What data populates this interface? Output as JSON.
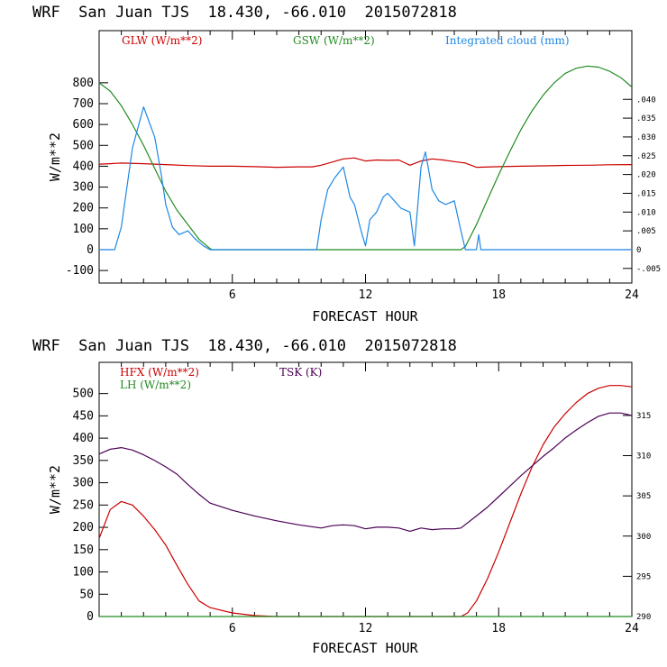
{
  "chart_data": [
    {
      "type": "line",
      "title": "WRF  San Juan TJS  18.430, -66.010  2015072818",
      "xlabel": "FORECAST HOUR",
      "ylabel": "W/m**2",
      "xlim": [
        0,
        24
      ],
      "ylim": [
        -160,
        1050
      ],
      "x_ticks": [
        "6",
        "12",
        "18",
        "24"
      ],
      "y_ticks": [
        "800",
        "700",
        "600",
        "500",
        "400",
        "300",
        "200",
        "100",
        "0",
        "-100"
      ],
      "y2lim": [
        -0.00889,
        0.0583
      ],
      "y2_ticks": [
        ".040",
        ".035",
        ".030",
        ".025",
        ".020",
        ".015",
        ".010",
        ".005",
        "0",
        "-.005"
      ],
      "legend_placement": "top",
      "series": [
        {
          "name": "GLW (W/m**2)",
          "color": "#cc0000",
          "axis": "left",
          "x": [
            0,
            0.5,
            1,
            2,
            3,
            4,
            5,
            6,
            7,
            8,
            9,
            9.6,
            10,
            10.5,
            11,
            11.5,
            12,
            12.5,
            13,
            13.5,
            14,
            14.5,
            15,
            15.5,
            16,
            16.5,
            17,
            18,
            19,
            20,
            21,
            22,
            23,
            24
          ],
          "y": [
            410,
            412,
            415,
            412,
            408,
            403,
            400,
            400,
            398,
            395,
            397,
            397,
            405,
            420,
            435,
            440,
            425,
            430,
            428,
            430,
            405,
            425,
            435,
            430,
            422,
            415,
            395,
            398,
            400,
            402,
            404,
            405,
            407,
            408
          ]
        },
        {
          "name": "GSW (W/m**2)",
          "color": "#228b22",
          "axis": "left",
          "x": [
            0,
            0.5,
            1,
            1.5,
            2,
            2.5,
            3,
            3.5,
            4,
            4.5,
            5,
            5.1,
            16.3,
            16.5,
            17,
            17.5,
            18,
            18.5,
            19,
            19.5,
            20,
            20.5,
            21,
            21.5,
            22,
            22.5,
            23,
            23.5,
            24
          ],
          "y": [
            800,
            760,
            690,
            600,
            500,
            390,
            280,
            190,
            120,
            50,
            5,
            0,
            0,
            15,
            120,
            240,
            360,
            470,
            575,
            665,
            740,
            800,
            845,
            870,
            880,
            875,
            855,
            825,
            780
          ]
        },
        {
          "name": "Integrated cloud (mm)",
          "color": "#1e88e5",
          "axis": "right",
          "x": [
            0,
            0.7,
            1,
            1.5,
            2,
            2.5,
            2.8,
            3,
            3.3,
            3.6,
            4,
            4.3,
            4.7,
            5,
            9.8,
            10,
            10.3,
            10.6,
            11,
            11.3,
            11.5,
            11.8,
            12,
            12.2,
            12.5,
            12.8,
            13,
            13.3,
            13.6,
            14,
            14.2,
            14.5,
            14.7,
            15,
            15.3,
            15.6,
            16,
            16.3,
            16.5,
            17,
            17.1,
            17.2,
            17.3,
            24
          ],
          "y": [
            0,
            0,
            0.006,
            0.027,
            0.038,
            0.03,
            0.02,
            0.012,
            0.006,
            0.004,
            0.005,
            0.003,
            0.001,
            0,
            0,
            0.008,
            0.016,
            0.019,
            0.022,
            0.014,
            0.012,
            0.005,
            0.001,
            0.008,
            0.01,
            0.014,
            0.015,
            0.013,
            0.011,
            0.01,
            0.001,
            0.022,
            0.026,
            0.016,
            0.013,
            0.012,
            0.013,
            0.005,
            0,
            0,
            0.004,
            0,
            0,
            0
          ]
        }
      ]
    },
    {
      "type": "line",
      "title": "WRF  San Juan TJS  18.430, -66.010  2015072818",
      "xlabel": "FORECAST HOUR",
      "ylabel": "W/m**2",
      "xlim": [
        0,
        24
      ],
      "ylim": [
        0,
        570
      ],
      "x_ticks": [
        "6",
        "12",
        "18",
        "24"
      ],
      "y_ticks": [
        "500",
        "450",
        "400",
        "350",
        "300",
        "250",
        "200",
        "150",
        "100",
        "50",
        "0"
      ],
      "y2lim": [
        290,
        321.6
      ],
      "y2_ticks": [
        "315",
        "310",
        "305",
        "300",
        "295",
        "290"
      ],
      "legend_placement": "top-left",
      "series": [
        {
          "name": "HFX (W/m**2)",
          "color": "#cc0000",
          "axis": "left",
          "x": [
            0,
            0.5,
            1,
            1.5,
            2,
            2.5,
            3,
            3.5,
            4,
            4.5,
            5,
            6,
            7,
            8,
            9,
            10,
            12,
            14,
            16.3,
            16.6,
            17,
            17.5,
            18,
            18.5,
            19,
            19.5,
            20,
            20.5,
            21,
            21.5,
            22,
            22.5,
            23,
            23.5,
            24
          ],
          "y": [
            175,
            240,
            258,
            250,
            225,
            195,
            160,
            115,
            72,
            35,
            20,
            8,
            2,
            0,
            0,
            0,
            0,
            0,
            0,
            8,
            35,
            85,
            145,
            210,
            275,
            335,
            385,
            425,
            455,
            480,
            500,
            512,
            518,
            518,
            515
          ]
        },
        {
          "name": "LH (W/m**2)",
          "color": "#228b22",
          "axis": "left",
          "x": [
            0,
            6,
            12,
            18,
            24
          ],
          "y": [
            0,
            0,
            0,
            0,
            0
          ]
        },
        {
          "name": "TSK (K)",
          "color": "#4b0055",
          "axis": "right",
          "x": [
            0,
            0.5,
            1,
            1.5,
            2,
            2.5,
            3,
            3.5,
            4,
            4.5,
            5,
            6,
            7,
            8,
            9,
            10,
            10.5,
            11,
            11.5,
            12,
            12.5,
            13,
            13.5,
            14,
            14.5,
            15,
            15.5,
            16,
            16.3,
            17,
            17.5,
            18,
            18.5,
            19,
            19.5,
            20,
            20.5,
            21,
            21.5,
            22,
            22.5,
            23,
            23.5,
            24
          ],
          "y": [
            310.2,
            310.8,
            311.0,
            310.7,
            310.1,
            309.4,
            308.6,
            307.7,
            306.4,
            305.2,
            304.1,
            303.2,
            302.5,
            301.9,
            301.4,
            301.0,
            301.3,
            301.4,
            301.3,
            300.9,
            301.1,
            301.1,
            301.0,
            300.6,
            301.0,
            300.8,
            300.9,
            300.9,
            301.0,
            302.5,
            303.6,
            304.9,
            306.2,
            307.5,
            308.7,
            309.9,
            311.0,
            312.2,
            313.2,
            314.1,
            314.9,
            315.3,
            315.3,
            315.0
          ]
        }
      ]
    }
  ]
}
